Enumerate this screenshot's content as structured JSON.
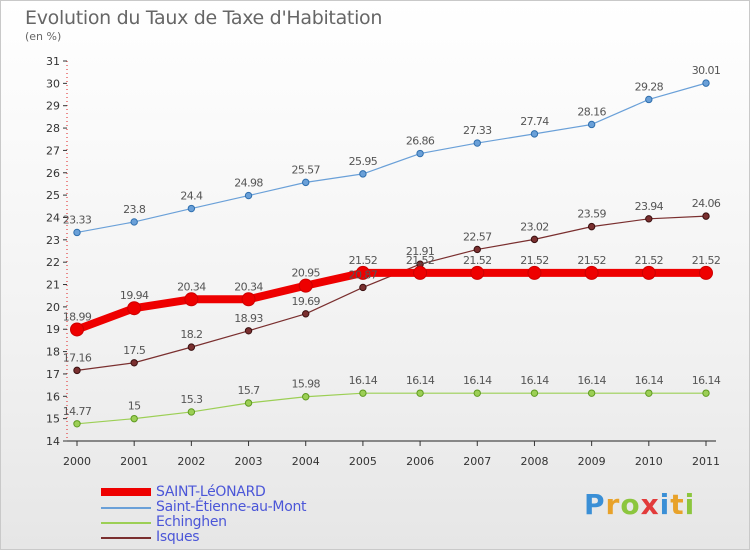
{
  "header": {
    "title": "Evolution du Taux de Taxe d'Habitation",
    "subtitle": "(en %)"
  },
  "logo": {
    "text": "Proxiti"
  },
  "chart_data": {
    "type": "line",
    "title": "Evolution du Taux de Taxe d'Habitation",
    "subtitle": "(en %)",
    "x": [
      2000,
      2001,
      2002,
      2003,
      2004,
      2005,
      2006,
      2007,
      2008,
      2009,
      2010,
      2011
    ],
    "ylim": [
      14,
      31
    ],
    "yticks": [
      14,
      15,
      16,
      17,
      18,
      19,
      20,
      21,
      22,
      23,
      24,
      25,
      26,
      27,
      28,
      29,
      30,
      31
    ],
    "grid": false,
    "legend_position": "bottom-left",
    "series": [
      {
        "name": "SAINT-LéONARD",
        "color": "#ee0000",
        "emphasis": true,
        "values": [
          18.99,
          19.94,
          20.34,
          20.34,
          20.95,
          21.52,
          21.52,
          21.52,
          21.52,
          21.52,
          21.52,
          21.52
        ],
        "labels": [
          "18.99",
          "19.94",
          "20.34",
          "20.34",
          "20.95",
          "21.52",
          "21.52",
          "21.52",
          "21.52",
          "21.52",
          "21.52",
          "21.52"
        ]
      },
      {
        "name": "Saint-Étienne-au-Mont",
        "color": "#6aa0d8",
        "values": [
          23.33,
          23.8,
          24.4,
          24.98,
          25.57,
          25.95,
          26.86,
          27.33,
          27.74,
          28.16,
          29.28,
          30.01
        ],
        "labels": [
          "23.33",
          "23.8",
          "24.4",
          "24.98",
          "25.57",
          "25.95",
          "26.86",
          "27.33",
          "27.74",
          "28.16",
          "29.28",
          "30.01"
        ]
      },
      {
        "name": "Echinghen",
        "color": "#9ccf55",
        "values": [
          14.77,
          15,
          15.3,
          15.7,
          15.98,
          16.14,
          16.14,
          16.14,
          16.14,
          16.14,
          16.14,
          16.14
        ],
        "labels": [
          "14.77",
          "15",
          "15.3",
          "15.7",
          "15.98",
          "16.14",
          "16.14",
          "16.14",
          "16.14",
          "16.14",
          "16.14",
          "16.14"
        ]
      },
      {
        "name": "Isques",
        "color": "#7a2f2f",
        "values": [
          17.16,
          17.5,
          18.2,
          18.93,
          19.69,
          20.87,
          21.91,
          22.57,
          23.02,
          23.59,
          23.94,
          24.06
        ],
        "labels": [
          "17.16",
          "17.5",
          "18.2",
          "18.93",
          "19.69",
          "20.87",
          "21.91",
          "22.57",
          "23.02",
          "23.59",
          "23.94",
          "24.06"
        ]
      }
    ]
  }
}
